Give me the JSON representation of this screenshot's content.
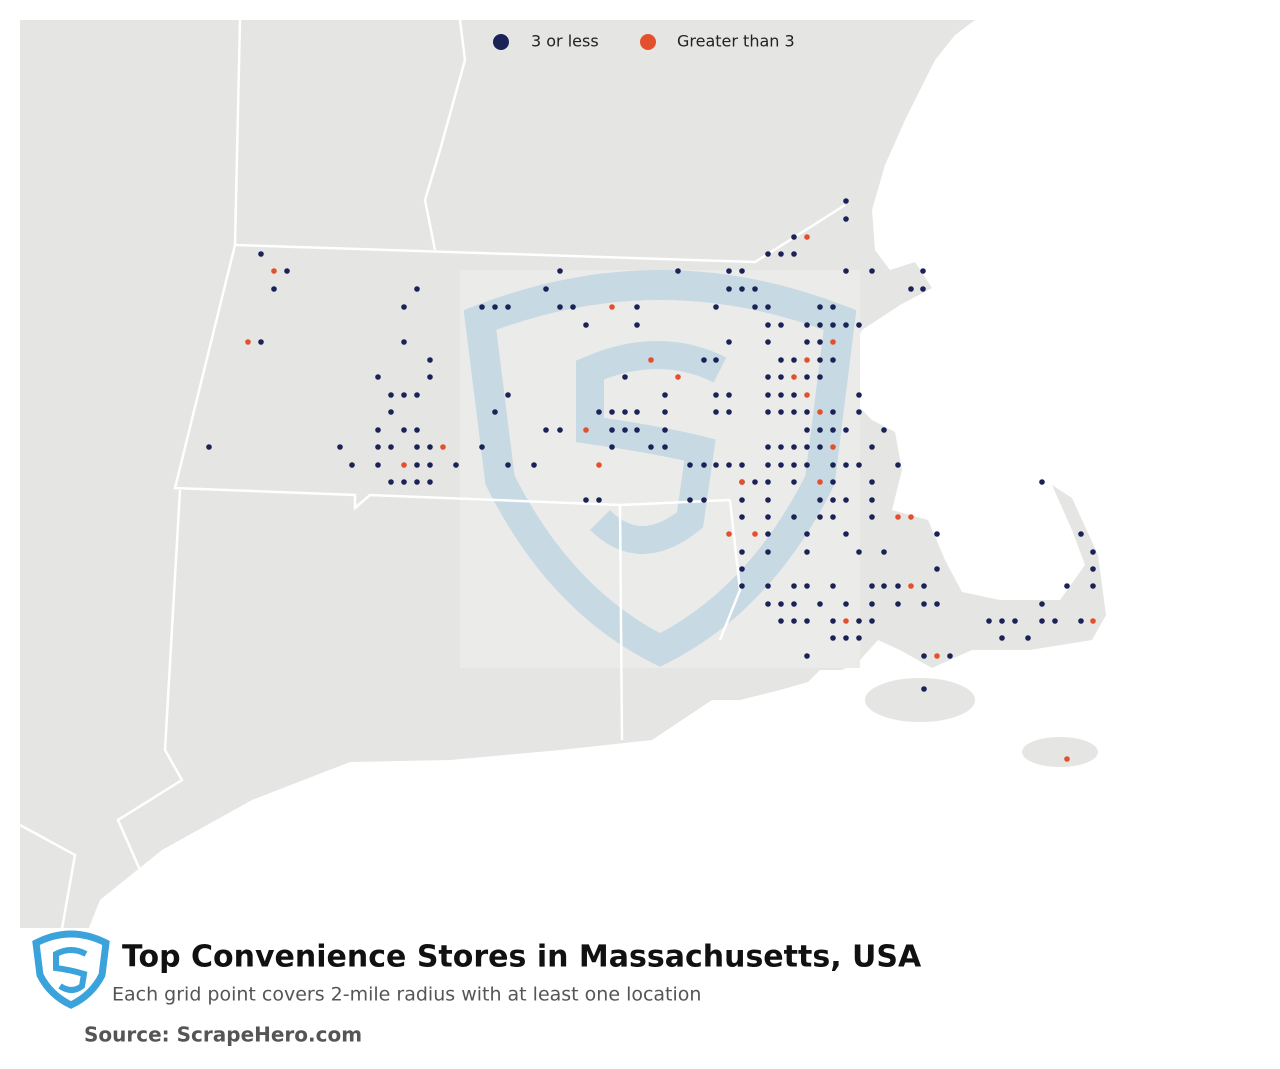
{
  "legend": [
    {
      "label": "3 or less",
      "color": "#1b2257"
    },
    {
      "label": "Greater than 3",
      "color": "#e4502b"
    }
  ],
  "title": "Top Convenience Stores in Massachusetts, USA",
  "subtitle": "Each grid point covers 2-mile radius with at least one location",
  "source": "Source: ScrapeHero.com"
}
